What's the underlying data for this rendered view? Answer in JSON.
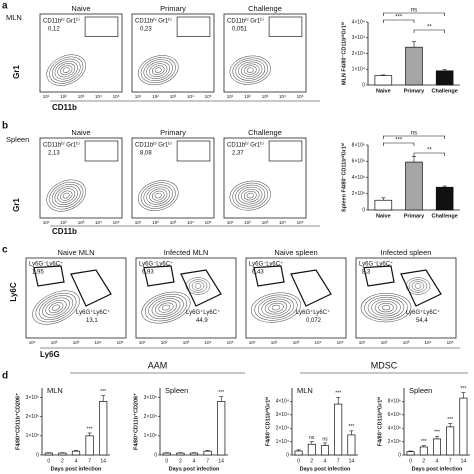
{
  "decades": [
    "10¹",
    "10²",
    "10³",
    "10⁴",
    "10⁵"
  ],
  "panel_a": {
    "letter": "a",
    "row_label": "MLN",
    "y_axis": "Gr1",
    "x_axis": "CD11b",
    "plots": [
      {
        "title": "Naive",
        "gate": "CD11bʰⁱ Gr1ʰⁱ",
        "value": "0,12"
      },
      {
        "title": "Primary",
        "gate": "CD11bʰⁱ Gr1ʰⁱ",
        "value": "0,23"
      },
      {
        "title": "Challenge",
        "gate": "CD11bʰⁱ Gr1ʰⁱ",
        "value": "0,051"
      }
    ],
    "chart": {
      "type": "bar",
      "ylabel": "MLN F4/80⁻CD11bʰⁱGr1ʰⁱ",
      "categories": [
        "Naive",
        "Primary",
        "Challenge"
      ],
      "values": [
        6000,
        24000,
        9000
      ],
      "errors": [
        400,
        3500,
        800
      ],
      "colors": [
        "#ffffff",
        "#a6a6a6",
        "#111111"
      ],
      "ylim": [
        0,
        40000
      ],
      "yticks": [
        {
          "value": 0,
          "label": "0"
        },
        {
          "value": 10000,
          "label": "1×10⁴"
        },
        {
          "value": 20000,
          "label": "2×10⁴"
        },
        {
          "value": 30000,
          "label": "3×10⁴"
        },
        {
          "value": 40000,
          "label": "4×10⁴"
        }
      ],
      "significance": [
        "ns",
        "***",
        "**"
      ]
    }
  },
  "panel_b": {
    "letter": "b",
    "row_label": "Spleen",
    "y_axis": "Gr1",
    "x_axis": "CD11b",
    "plots": [
      {
        "title": "Naive",
        "gate": "CD11bʰⁱ Gr1ʰⁱ",
        "value": "2,13"
      },
      {
        "title": "Primary",
        "gate": "CD11bʰⁱ Gr1ʰⁱ",
        "value": "8,08"
      },
      {
        "title": "Challenge",
        "gate": "CD11bʰⁱ Gr1ʰⁱ",
        "value": "2,37"
      }
    ],
    "chart": {
      "type": "bar",
      "ylabel": "Spleen F4/80⁻CD11bʰⁱGr1ʰⁱ",
      "categories": [
        "Naive",
        "Primary",
        "Challenge"
      ],
      "values": [
        1200000,
        5900000,
        2800000
      ],
      "errors": [
        300000,
        700000,
        150000
      ],
      "colors": [
        "#ffffff",
        "#a6a6a6",
        "#111111"
      ],
      "ylim": [
        0,
        8000000
      ],
      "yticks": [
        {
          "value": 0,
          "label": "0"
        },
        {
          "value": 2000000,
          "label": "2×10⁶"
        },
        {
          "value": 4000000,
          "label": "4×10⁶"
        },
        {
          "value": 6000000,
          "label": "6×10⁶"
        },
        {
          "value": 8000000,
          "label": "8×10⁶"
        }
      ],
      "significance": [
        "ns",
        "***",
        "**"
      ]
    }
  },
  "panel_c": {
    "letter": "c",
    "y_axis": "Ly6C",
    "x_axis": "Ly6G",
    "plots": [
      {
        "title": "Naive MLN",
        "gate1": "Ly6G⁻Ly6C⁺",
        "value1": "1,95",
        "gate2": "Ly6G⁺Ly6C⁺",
        "value2": "13,1"
      },
      {
        "title": "Infected MLN",
        "gate1": "Ly6G⁻Ly6C⁺",
        "value1": "6,93",
        "gate2": "Ly6G⁺Ly6C⁺",
        "value2": "44,9"
      },
      {
        "title": "Naive spleen",
        "gate1": "Ly6G⁻Ly6C⁺",
        "value1": "6,43",
        "gate2": "Ly6G⁺Ly6C⁺",
        "value2": "0,072"
      },
      {
        "title": "Infected spleen",
        "gate1": "Ly6G⁻Ly6C⁺",
        "value1": "8,3",
        "gate2": "Ly6G⁺Ly6C⁺",
        "value2": "54,4"
      }
    ]
  },
  "panel_d": {
    "letter": "d",
    "groups": [
      "AAM",
      "MDSC"
    ],
    "xlabel": "Days post infection",
    "charts": [
      {
        "type": "bar",
        "title": "MLN",
        "ylabel": "F4/80⁺CD11b⁺CD206⁺",
        "categories": [
          "0",
          "2",
          "4",
          "7",
          "14"
        ],
        "values": [
          10000,
          10000,
          20000,
          100000,
          280000
        ],
        "errors": [
          2000,
          2000,
          4000,
          15000,
          30000
        ],
        "ylim": [
          0,
          350000
        ],
        "yticks": [
          {
            "value": 0,
            "label": "0"
          },
          {
            "value": 100000,
            "label": "1×10⁵"
          },
          {
            "value": 200000,
            "label": "2×10⁵"
          },
          {
            "value": 300000,
            "label": "3×10⁵"
          }
        ],
        "significance": [
          null,
          null,
          null,
          "***",
          "***"
        ]
      },
      {
        "type": "bar",
        "title": "Spleen",
        "ylabel": "F4/80⁺CD11b⁺CD206⁺",
        "categories": [
          "0",
          "2",
          "4",
          "7",
          "14"
        ],
        "values": [
          10000,
          10000,
          10000,
          20000,
          280000
        ],
        "errors": [
          2000,
          2000,
          2000,
          4000,
          25000
        ],
        "ylim": [
          0,
          350000
        ],
        "yticks": [
          {
            "value": 0,
            "label": "0"
          },
          {
            "value": 100000,
            "label": "1×10⁵"
          },
          {
            "value": 200000,
            "label": "2×10⁵"
          },
          {
            "value": 300000,
            "label": "3×10⁵"
          }
        ],
        "significance": [
          null,
          null,
          null,
          null,
          "***"
        ]
      },
      {
        "type": "bar",
        "title": "MLN",
        "ylabel": "F4/80⁻CD11bʰⁱGr1ʰⁱ",
        "categories": [
          "0",
          "2",
          "4",
          "7",
          "14"
        ],
        "values": [
          3000,
          8000,
          7000,
          38000,
          15000
        ],
        "errors": [
          800,
          2000,
          2000,
          5000,
          3000
        ],
        "ylim": [
          0,
          50000
        ],
        "yticks": [
          {
            "value": 0,
            "label": "0"
          },
          {
            "value": 10000,
            "label": "1×10⁴"
          },
          {
            "value": 20000,
            "label": "2×10⁴"
          },
          {
            "value": 30000,
            "label": "3×10⁴"
          },
          {
            "value": 40000,
            "label": "4×10⁴"
          }
        ],
        "significance": [
          null,
          "ns",
          "ns",
          "***",
          "***"
        ]
      },
      {
        "type": "bar",
        "title": "Spleen",
        "ylabel": "F4/80⁻CD11bʰⁱGr1ʰⁱ",
        "categories": [
          "0",
          "2",
          "4",
          "7",
          "14"
        ],
        "values": [
          500000,
          1200000,
          2400000,
          4200000,
          8500000
        ],
        "errors": [
          100000,
          200000,
          400000,
          500000,
          800000
        ],
        "ylim": [
          0,
          10000000
        ],
        "yticks": [
          {
            "value": 0,
            "label": "0"
          },
          {
            "value": 2000000,
            "label": "2×10⁶"
          },
          {
            "value": 4000000,
            "label": "4×10⁶"
          },
          {
            "value": 6000000,
            "label": "6×10⁶"
          },
          {
            "value": 8000000,
            "label": "8×10⁶"
          }
        ],
        "significance": [
          null,
          "***",
          "***",
          "***",
          "***"
        ]
      }
    ]
  }
}
